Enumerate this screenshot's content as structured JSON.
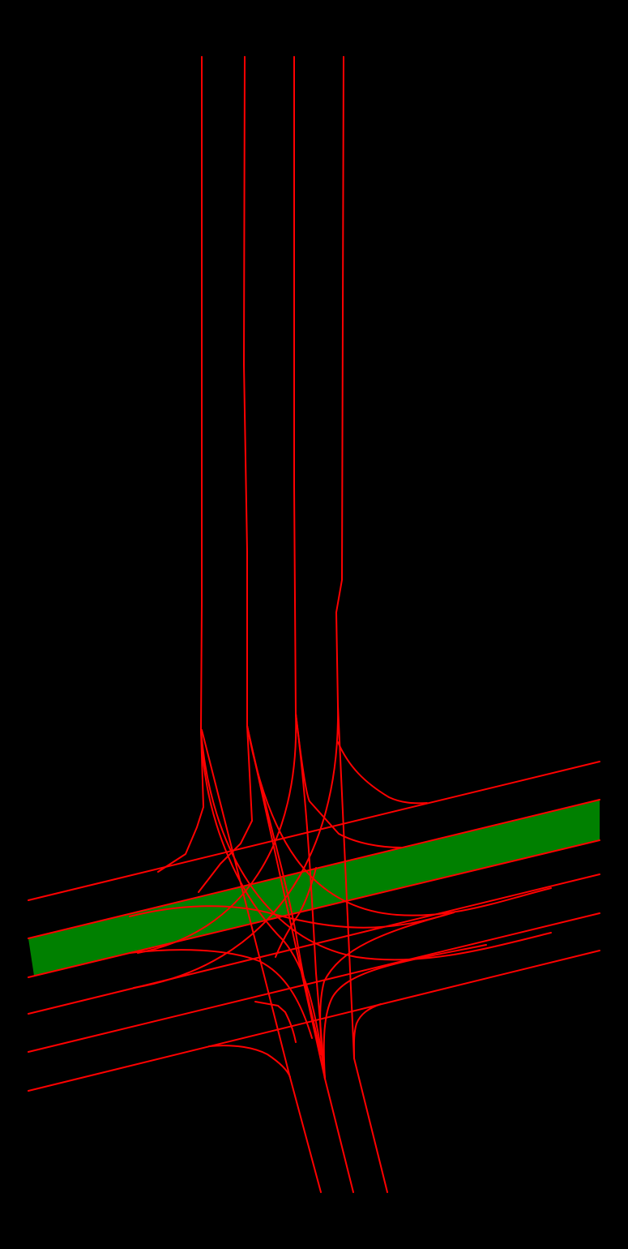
{
  "diagram": {
    "background_color": "#000000",
    "lane_line_color": "#ff0000",
    "highlight_lane_color": "#008000",
    "highlight_lane_border_color": "#ff0000",
    "lane_line_groups": [
      "north-lane-lines",
      "east-west-lane-lines",
      "south-lane-lines",
      "intersection-connector-lines"
    ]
  }
}
